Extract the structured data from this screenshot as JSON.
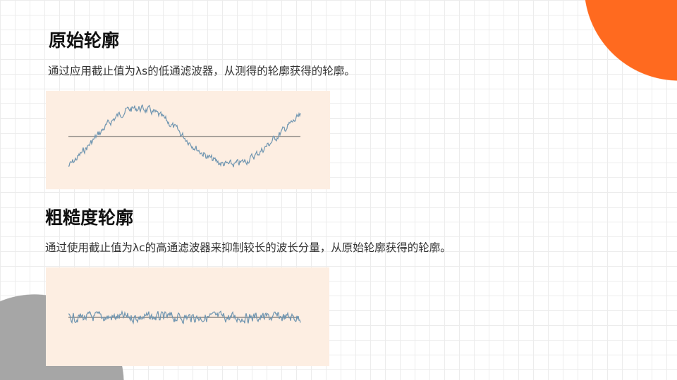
{
  "colors": {
    "accent": "#ff6a1f",
    "panel": "#fdeee2",
    "profile": "#6f95b0",
    "meanline": "#555555",
    "decor_gray": "#a6a6a6"
  },
  "sections": [
    {
      "title": "原始轮廓",
      "description": "通过应用截止值为λs的低通滤波器，从测得的轮廓获得的轮廓。"
    },
    {
      "title": "粗糙度轮廓",
      "description": "通过使用截止值为λc的高通滤波器来抑制较长的波长分量，从原始轮廓获得的轮廓。"
    }
  ]
}
